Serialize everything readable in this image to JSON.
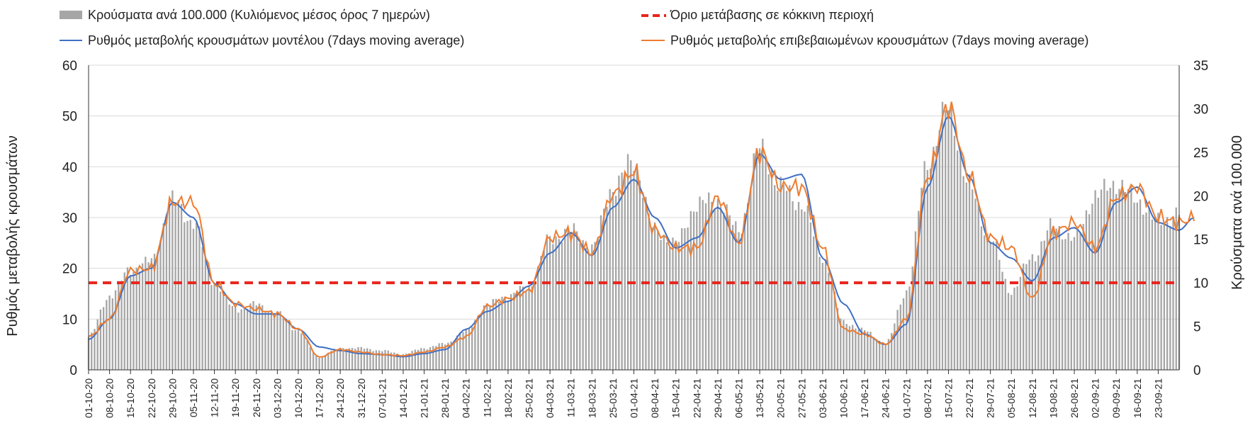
{
  "chart_data": {
    "type": "bar+line",
    "x_ticks": [
      "01-10-20",
      "08-10-20",
      "15-10-20",
      "22-10-20",
      "29-10-20",
      "05-11-20",
      "12-11-20",
      "19-11-20",
      "26-11-20",
      "03-12-20",
      "10-12-20",
      "17-12-20",
      "24-12-20",
      "31-12-20",
      "07-01-21",
      "14-01-21",
      "21-01-21",
      "28-01-21",
      "04-02-21",
      "11-02-21",
      "18-02-21",
      "25-02-21",
      "04-03-21",
      "11-03-21",
      "18-03-21",
      "25-03-21",
      "01-04-21",
      "08-04-21",
      "15-04-21",
      "22-04-21",
      "29-04-21",
      "06-05-21",
      "13-05-21",
      "20-05-21",
      "27-05-21",
      "03-06-21",
      "10-06-21",
      "17-06-21",
      "24-06-21",
      "01-07-21",
      "08-07-21",
      "15-07-21",
      "22-07-21",
      "29-07-21",
      "05-08-21",
      "12-08-21",
      "19-08-21",
      "26-08-21",
      "02-09-21",
      "09-09-21",
      "16-09-21",
      "23-09-21"
    ],
    "left_axis": {
      "label": "Ρυθμός μεταβολής κρουσμάτων",
      "ylim": [
        0,
        60
      ],
      "ticks": [
        0,
        10,
        20,
        30,
        40,
        50,
        60
      ]
    },
    "right_axis": {
      "label": "Κρούσματα ανά 100.000",
      "ylim": [
        0,
        35
      ],
      "ticks": [
        0,
        5,
        10,
        15,
        20,
        25,
        30,
        35
      ]
    },
    "legend": {
      "bars": "Κρούσματα ανά 100.000 (Κυλιόμενος μέσος όρος 7 ημερών)",
      "threshold": "Όριο μετάβασης σε κόκκινη περιοχή",
      "model": "Ρυθμός μεταβολής κρουσμάτων μοντέλου (7days moving average)",
      "confirmed": "Ρυθμός μεταβολής επιβεβαιωμένων κρουσμάτων (7days moving average)"
    },
    "threshold_right_axis": 10,
    "bars_keypoints_right_axis": [
      [
        0,
        3.8
      ],
      [
        7,
        8.5
      ],
      [
        14,
        11.5
      ],
      [
        21,
        12.5
      ],
      [
        28,
        19.5
      ],
      [
        35,
        17
      ],
      [
        42,
        10
      ],
      [
        49,
        7
      ],
      [
        56,
        7.5
      ],
      [
        63,
        6.5
      ],
      [
        70,
        4.5
      ],
      [
        77,
        1.5
      ],
      [
        84,
        2.5
      ],
      [
        91,
        2.5
      ],
      [
        98,
        2.2
      ],
      [
        105,
        1.8
      ],
      [
        112,
        2.5
      ],
      [
        119,
        3
      ],
      [
        126,
        4.5
      ],
      [
        133,
        7.5
      ],
      [
        140,
        8.5
      ],
      [
        147,
        9.5
      ],
      [
        154,
        15
      ],
      [
        161,
        16
      ],
      [
        168,
        14
      ],
      [
        175,
        21
      ],
      [
        182,
        24
      ],
      [
        189,
        16
      ],
      [
        196,
        14.5
      ],
      [
        203,
        19
      ],
      [
        210,
        19.5
      ],
      [
        217,
        16
      ],
      [
        224,
        25.5
      ],
      [
        231,
        21
      ],
      [
        238,
        19
      ],
      [
        245,
        13
      ],
      [
        252,
        5.5
      ],
      [
        259,
        4.5
      ],
      [
        266,
        3
      ],
      [
        273,
        9
      ],
      [
        280,
        24
      ],
      [
        287,
        30
      ],
      [
        294,
        21
      ],
      [
        301,
        15
      ],
      [
        308,
        9
      ],
      [
        315,
        13
      ],
      [
        322,
        16.5
      ],
      [
        329,
        15
      ],
      [
        336,
        20
      ],
      [
        343,
        21.5
      ],
      [
        350,
        19.5
      ],
      [
        357,
        17
      ],
      [
        364,
        18
      ]
    ],
    "model_keypoints": [
      [
        0,
        6
      ],
      [
        7,
        10
      ],
      [
        14,
        18.5
      ],
      [
        21,
        20
      ],
      [
        28,
        33
      ],
      [
        35,
        30
      ],
      [
        42,
        17
      ],
      [
        49,
        13
      ],
      [
        56,
        11
      ],
      [
        63,
        11
      ],
      [
        70,
        8
      ],
      [
        77,
        4.5
      ],
      [
        84,
        3.8
      ],
      [
        91,
        3.2
      ],
      [
        98,
        3
      ],
      [
        105,
        2.6
      ],
      [
        112,
        3.2
      ],
      [
        119,
        4
      ],
      [
        126,
        8
      ],
      [
        133,
        11.5
      ],
      [
        140,
        13.5
      ],
      [
        147,
        16.5
      ],
      [
        154,
        23
      ],
      [
        161,
        27
      ],
      [
        168,
        22.5
      ],
      [
        175,
        32
      ],
      [
        182,
        37.5
      ],
      [
        189,
        30
      ],
      [
        196,
        24
      ],
      [
        203,
        26
      ],
      [
        210,
        32
      ],
      [
        217,
        25
      ],
      [
        224,
        42.5
      ],
      [
        231,
        37.5
      ],
      [
        238,
        38.5
      ],
      [
        245,
        22
      ],
      [
        252,
        13
      ],
      [
        259,
        7
      ],
      [
        266,
        5
      ],
      [
        273,
        9
      ],
      [
        280,
        36
      ],
      [
        287,
        50
      ],
      [
        294,
        38
      ],
      [
        301,
        25
      ],
      [
        308,
        22
      ],
      [
        315,
        17.5
      ],
      [
        322,
        26
      ],
      [
        329,
        28
      ],
      [
        336,
        23
      ],
      [
        343,
        33
      ],
      [
        350,
        36
      ],
      [
        357,
        29
      ],
      [
        364,
        27.5
      ],
      [
        369,
        30
      ]
    ],
    "confirmed_keypoints": [
      [
        0,
        6.5
      ],
      [
        7,
        10
      ],
      [
        14,
        19.5
      ],
      [
        21,
        20
      ],
      [
        28,
        33
      ],
      [
        35,
        33
      ],
      [
        42,
        17
      ],
      [
        49,
        13
      ],
      [
        56,
        12
      ],
      [
        63,
        11
      ],
      [
        70,
        8
      ],
      [
        77,
        2.5
      ],
      [
        84,
        4
      ],
      [
        91,
        3.5
      ],
      [
        98,
        3
      ],
      [
        105,
        2.8
      ],
      [
        112,
        3.5
      ],
      [
        119,
        4.5
      ],
      [
        126,
        6.5
      ],
      [
        133,
        12.5
      ],
      [
        140,
        14
      ],
      [
        147,
        15.5
      ],
      [
        154,
        26
      ],
      [
        161,
        27
      ],
      [
        168,
        23
      ],
      [
        175,
        34.5
      ],
      [
        182,
        39
      ],
      [
        189,
        27.5
      ],
      [
        196,
        24
      ],
      [
        203,
        24
      ],
      [
        210,
        34
      ],
      [
        217,
        25
      ],
      [
        224,
        43
      ],
      [
        231,
        36
      ],
      [
        238,
        36
      ],
      [
        245,
        24
      ],
      [
        252,
        8
      ],
      [
        259,
        7
      ],
      [
        266,
        5
      ],
      [
        273,
        10
      ],
      [
        280,
        38
      ],
      [
        287,
        52
      ],
      [
        294,
        38
      ],
      [
        301,
        26
      ],
      [
        308,
        24
      ],
      [
        315,
        14
      ],
      [
        322,
        27
      ],
      [
        329,
        29
      ],
      [
        336,
        24
      ],
      [
        343,
        34
      ],
      [
        350,
        36
      ],
      [
        357,
        30
      ],
      [
        364,
        29
      ],
      [
        369,
        30
      ]
    ]
  }
}
